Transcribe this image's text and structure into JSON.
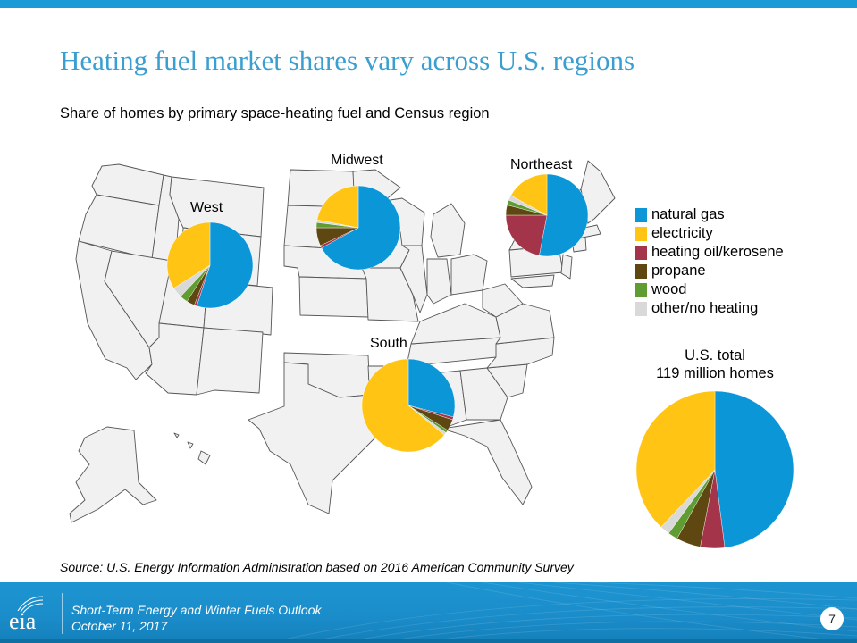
{
  "header": {
    "title": "Heating fuel market shares vary across U.S. regions",
    "subtitle": "Share of homes by primary space-heating fuel and Census region"
  },
  "legend": {
    "items": [
      {
        "label": "natural gas",
        "color": "#0b96d8"
      },
      {
        "label": "electricity",
        "color": "#ffc414"
      },
      {
        "label": "heating oil/kerosene",
        "color": "#a3344a"
      },
      {
        "label": "propane",
        "color": "#5e4710"
      },
      {
        "label": "wood",
        "color": "#5f9d33"
      },
      {
        "label": "other/no heating",
        "color": "#d9d9d9"
      }
    ]
  },
  "regions": {
    "west": {
      "label": "West"
    },
    "midwest": {
      "label": "Midwest"
    },
    "northeast": {
      "label": "Northeast"
    },
    "south": {
      "label": "South"
    }
  },
  "total": {
    "line1": "U.S. total",
    "line2": "119 million homes"
  },
  "source": "Source: U.S. Energy Information Administration based on 2016 American Community Survey",
  "footer": {
    "logo_text": "eia",
    "title": "Short-Term Energy and Winter Fuels Outlook",
    "date": "October 11, 2017",
    "page": "7"
  },
  "chart_data": [
    {
      "type": "pie",
      "title": "West",
      "categories": [
        "natural gas",
        "heating oil/kerosene",
        "propane",
        "wood",
        "other/no heating",
        "electricity"
      ],
      "values": [
        55,
        1,
        3,
        3,
        4,
        34
      ]
    },
    {
      "type": "pie",
      "title": "Midwest",
      "categories": [
        "natural gas",
        "heating oil/kerosene",
        "propane",
        "wood",
        "other/no heating",
        "electricity"
      ],
      "values": [
        67,
        1,
        7,
        2,
        1,
        22
      ]
    },
    {
      "type": "pie",
      "title": "Northeast",
      "categories": [
        "natural gas",
        "heating oil/kerosene",
        "propane",
        "wood",
        "other/no heating",
        "electricity"
      ],
      "values": [
        53,
        22,
        4,
        2,
        2,
        17
      ]
    },
    {
      "type": "pie",
      "title": "South",
      "categories": [
        "natural gas",
        "heating oil/kerosene",
        "propane",
        "wood",
        "other/no heating",
        "electricity"
      ],
      "values": [
        29,
        1,
        4,
        1,
        1,
        64
      ]
    },
    {
      "type": "pie",
      "title": "U.S. total, 119 million homes",
      "categories": [
        "natural gas",
        "heating oil/kerosene",
        "propane",
        "wood",
        "other/no heating",
        "electricity"
      ],
      "values": [
        48,
        5,
        5,
        2,
        2,
        38
      ]
    }
  ]
}
